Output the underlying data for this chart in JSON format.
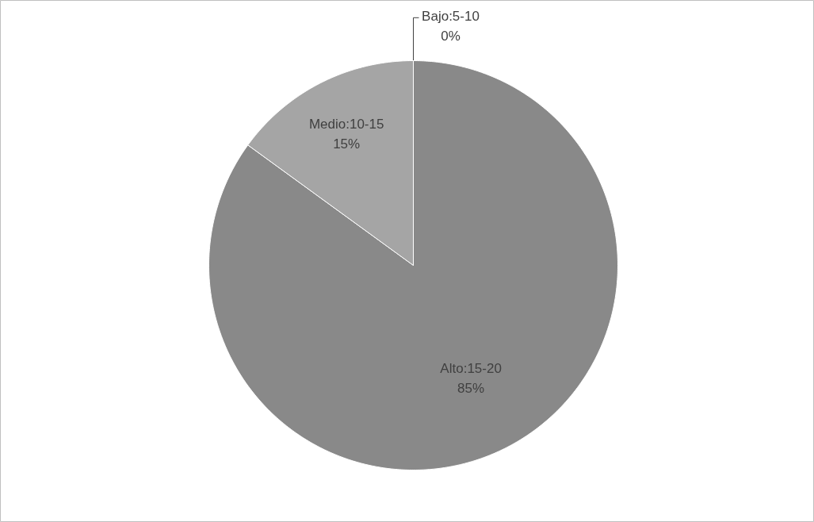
{
  "chart_data": {
    "type": "pie",
    "categories": [
      "Bajo:5-10",
      "Alto:15-20",
      "Medio:10-15"
    ],
    "values": [
      0,
      85,
      15
    ],
    "value_labels": [
      "0%",
      "85%",
      "15%"
    ],
    "colors": [
      "#7f7f7f",
      "#898989",
      "#a5a5a5"
    ],
    "legend": false
  }
}
